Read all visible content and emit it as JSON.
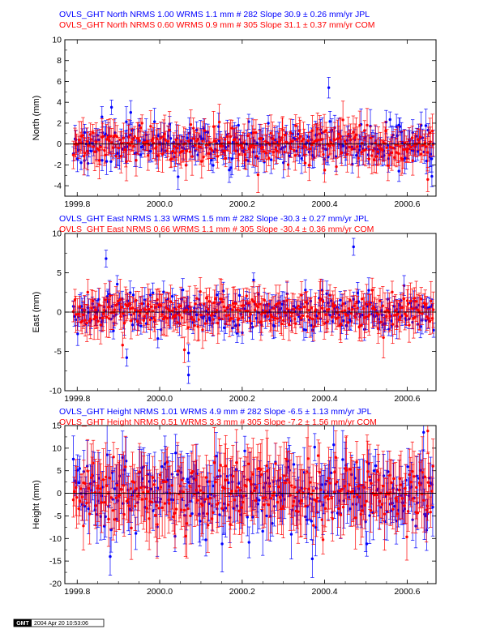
{
  "chart_data": [
    {
      "type": "scatter",
      "ylabel": "North (mm)",
      "ylim": [
        -5,
        10
      ],
      "xlim": [
        1999.77,
        2000.67
      ],
      "yticks": [
        "-4",
        "-2",
        "0",
        "2",
        "4",
        "6",
        "8",
        "10"
      ],
      "xticks": [
        "1999.8",
        "2000.0",
        "2000.2",
        "2000.4",
        "2000.6"
      ],
      "titles": [
        {
          "text": "OVLS_GHT North NRMS 1.00 WRMS  1.1 mm # 282 Slope   30.9 ±  0.26 mm/yr JPL",
          "color": "#0000ff"
        },
        {
          "text": "OVLS_GHT North NRMS 0.60 WRMS  0.9 mm # 305 Slope   31.1 ±  0.37 mm/yr COM",
          "color": "#ff0000"
        }
      ],
      "series": [
        {
          "name": "JPL",
          "color": "#0000ff",
          "count": 282,
          "wrms": 1.1,
          "sigma": 1.1,
          "seed": 11,
          "outliers": [
            [
              2000.41,
              5.4
            ],
            [
              1999.86,
              2.6
            ],
            [
              2000.58,
              -2.6
            ],
            [
              2000.66,
              -3.1
            ]
          ]
        },
        {
          "name": "COM",
          "color": "#ff0000",
          "count": 305,
          "wrms": 0.9,
          "sigma": 1.3,
          "seed": 23,
          "outliers": [
            [
              2000.4,
              -2.5
            ],
            [
              2000.65,
              -3.4
            ]
          ]
        }
      ]
    },
    {
      "type": "scatter",
      "ylabel": "East (mm)",
      "ylim": [
        -10,
        10
      ],
      "xlim": [
        1999.77,
        2000.67
      ],
      "yticks": [
        "-10",
        "-5",
        "0",
        "5",
        "10"
      ],
      "xticks": [
        "1999.8",
        "2000.0",
        "2000.2",
        "2000.4",
        "2000.6"
      ],
      "titles": [
        {
          "text": "OVLS_GHT East NRMS 1.33 WRMS  1.5 mm # 282 Slope  -30.3 ±  0.27 mm/yr JPL",
          "color": "#0000ff"
        },
        {
          "text": "OVLS_GHT East NRMS 0.66 WRMS  1.1 mm # 305 Slope  -30.4 ±  0.36 mm/yr COM",
          "color": "#ff0000"
        }
      ],
      "series": [
        {
          "name": "JPL",
          "color": "#0000ff",
          "count": 282,
          "wrms": 1.5,
          "sigma": 1.2,
          "seed": 37,
          "outliers": [
            [
              1999.87,
              6.8
            ],
            [
              2000.47,
              8.3
            ],
            [
              2000.07,
              -8.0
            ],
            [
              2000.07,
              -5.2
            ],
            [
              1999.92,
              -5.8
            ]
          ]
        },
        {
          "name": "COM",
          "color": "#ff0000",
          "count": 305,
          "wrms": 1.1,
          "sigma": 1.8,
          "seed": 41,
          "outliers": [
            [
              2000.06,
              -4.8
            ],
            [
              1999.91,
              -4.2
            ]
          ]
        }
      ]
    },
    {
      "type": "scatter",
      "ylabel": "Height (mm)",
      "ylim": [
        -20,
        15
      ],
      "xlim": [
        1999.77,
        2000.67
      ],
      "yticks": [
        "-20",
        "-15",
        "-10",
        "-5",
        "0",
        "5",
        "10",
        "15"
      ],
      "xticks": [
        "1999.8",
        "2000.0",
        "2000.2",
        "2000.4",
        "2000.6"
      ],
      "titles": [
        {
          "text": "OVLS_GHT Height NRMS 1.01 WRMS  4.9 mm # 282 Slope   -6.5 ±  1.13 mm/yr JPL",
          "color": "#0000ff"
        },
        {
          "text": "OVLS_GHT Height NRMS 0.51 WRMS  3.3 mm # 305 Slope   -7.2 ±  1.56 mm/yr COM",
          "color": "#ff0000"
        }
      ],
      "series": [
        {
          "name": "JPL",
          "color": "#0000ff",
          "count": 282,
          "wrms": 4.9,
          "sigma": 4.6,
          "seed": 53,
          "outliers": [
            [
              1999.88,
              -14
            ],
            [
              2000.37,
              -14.5
            ],
            [
              2000.64,
              13.5
            ]
          ]
        },
        {
          "name": "COM",
          "color": "#ff0000",
          "count": 305,
          "wrms": 3.3,
          "sigma": 5.6,
          "seed": 67,
          "outliers": [
            [
              2000.65,
              13.8
            ]
          ]
        }
      ]
    }
  ],
  "footer": {
    "logo": "GMT",
    "timestamp": "2004 Apr 20 10:53:06"
  }
}
